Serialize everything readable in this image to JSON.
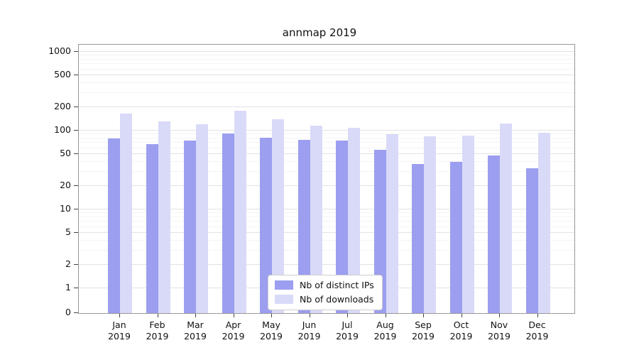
{
  "chart_data": {
    "type": "bar",
    "title": "annmap 2019",
    "categories": [
      "Jan 2019",
      "Feb 2019",
      "Mar 2019",
      "Apr 2019",
      "May 2019",
      "Jun 2019",
      "Jul 2019",
      "Aug 2019",
      "Sep 2019",
      "Oct 2019",
      "Nov 2019",
      "Dec 2019"
    ],
    "series": [
      {
        "name": "Nb of distinct IPs",
        "color": "#9c9eef",
        "values": [
          80,
          68,
          75,
          93,
          81,
          77,
          75,
          57,
          38,
          40,
          48,
          33
        ]
      },
      {
        "name": "Nb of downloads",
        "color": "#d9daf8",
        "values": [
          165,
          130,
          120,
          180,
          140,
          115,
          108,
          90,
          84,
          87,
          122,
          95
        ]
      }
    ],
    "yscale": "symlog",
    "yticks": [
      0,
      1,
      2,
      5,
      10,
      20,
      50,
      100,
      200,
      500,
      1000
    ],
    "ylim": [
      0,
      1400
    ],
    "xlabel": "",
    "ylabel": "",
    "grid": "horizontal",
    "legend_position": "lower center"
  }
}
